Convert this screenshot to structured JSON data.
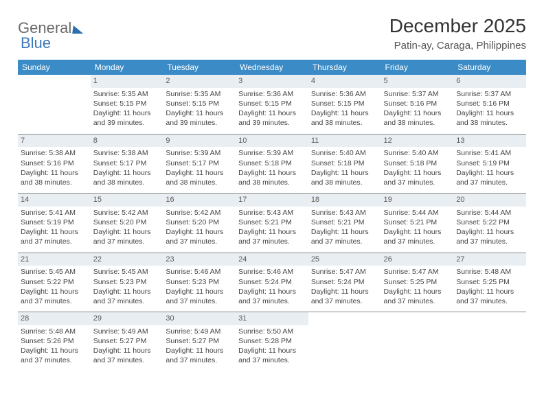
{
  "logo": {
    "part1": "General",
    "part2": "Blue"
  },
  "title": "December 2025",
  "subtitle": "Patin-ay, Caraga, Philippines",
  "colors": {
    "header_bg": "#3b8bc6",
    "header_text": "#ffffff",
    "daynum_bg": "#e9eef2",
    "rule": "#888888"
  },
  "daynames": [
    "Sunday",
    "Monday",
    "Tuesday",
    "Wednesday",
    "Thursday",
    "Friday",
    "Saturday"
  ],
  "weeks": [
    [
      {
        "n": "",
        "rise": "",
        "set": "",
        "d1": "",
        "d2": ""
      },
      {
        "n": "1",
        "rise": "Sunrise: 5:35 AM",
        "set": "Sunset: 5:15 PM",
        "d1": "Daylight: 11 hours",
        "d2": "and 39 minutes."
      },
      {
        "n": "2",
        "rise": "Sunrise: 5:35 AM",
        "set": "Sunset: 5:15 PM",
        "d1": "Daylight: 11 hours",
        "d2": "and 39 minutes."
      },
      {
        "n": "3",
        "rise": "Sunrise: 5:36 AM",
        "set": "Sunset: 5:15 PM",
        "d1": "Daylight: 11 hours",
        "d2": "and 39 minutes."
      },
      {
        "n": "4",
        "rise": "Sunrise: 5:36 AM",
        "set": "Sunset: 5:15 PM",
        "d1": "Daylight: 11 hours",
        "d2": "and 38 minutes."
      },
      {
        "n": "5",
        "rise": "Sunrise: 5:37 AM",
        "set": "Sunset: 5:16 PM",
        "d1": "Daylight: 11 hours",
        "d2": "and 38 minutes."
      },
      {
        "n": "6",
        "rise": "Sunrise: 5:37 AM",
        "set": "Sunset: 5:16 PM",
        "d1": "Daylight: 11 hours",
        "d2": "and 38 minutes."
      }
    ],
    [
      {
        "n": "7",
        "rise": "Sunrise: 5:38 AM",
        "set": "Sunset: 5:16 PM",
        "d1": "Daylight: 11 hours",
        "d2": "and 38 minutes."
      },
      {
        "n": "8",
        "rise": "Sunrise: 5:38 AM",
        "set": "Sunset: 5:17 PM",
        "d1": "Daylight: 11 hours",
        "d2": "and 38 minutes."
      },
      {
        "n": "9",
        "rise": "Sunrise: 5:39 AM",
        "set": "Sunset: 5:17 PM",
        "d1": "Daylight: 11 hours",
        "d2": "and 38 minutes."
      },
      {
        "n": "10",
        "rise": "Sunrise: 5:39 AM",
        "set": "Sunset: 5:18 PM",
        "d1": "Daylight: 11 hours",
        "d2": "and 38 minutes."
      },
      {
        "n": "11",
        "rise": "Sunrise: 5:40 AM",
        "set": "Sunset: 5:18 PM",
        "d1": "Daylight: 11 hours",
        "d2": "and 38 minutes."
      },
      {
        "n": "12",
        "rise": "Sunrise: 5:40 AM",
        "set": "Sunset: 5:18 PM",
        "d1": "Daylight: 11 hours",
        "d2": "and 37 minutes."
      },
      {
        "n": "13",
        "rise": "Sunrise: 5:41 AM",
        "set": "Sunset: 5:19 PM",
        "d1": "Daylight: 11 hours",
        "d2": "and 37 minutes."
      }
    ],
    [
      {
        "n": "14",
        "rise": "Sunrise: 5:41 AM",
        "set": "Sunset: 5:19 PM",
        "d1": "Daylight: 11 hours",
        "d2": "and 37 minutes."
      },
      {
        "n": "15",
        "rise": "Sunrise: 5:42 AM",
        "set": "Sunset: 5:20 PM",
        "d1": "Daylight: 11 hours",
        "d2": "and 37 minutes."
      },
      {
        "n": "16",
        "rise": "Sunrise: 5:42 AM",
        "set": "Sunset: 5:20 PM",
        "d1": "Daylight: 11 hours",
        "d2": "and 37 minutes."
      },
      {
        "n": "17",
        "rise": "Sunrise: 5:43 AM",
        "set": "Sunset: 5:21 PM",
        "d1": "Daylight: 11 hours",
        "d2": "and 37 minutes."
      },
      {
        "n": "18",
        "rise": "Sunrise: 5:43 AM",
        "set": "Sunset: 5:21 PM",
        "d1": "Daylight: 11 hours",
        "d2": "and 37 minutes."
      },
      {
        "n": "19",
        "rise": "Sunrise: 5:44 AM",
        "set": "Sunset: 5:21 PM",
        "d1": "Daylight: 11 hours",
        "d2": "and 37 minutes."
      },
      {
        "n": "20",
        "rise": "Sunrise: 5:44 AM",
        "set": "Sunset: 5:22 PM",
        "d1": "Daylight: 11 hours",
        "d2": "and 37 minutes."
      }
    ],
    [
      {
        "n": "21",
        "rise": "Sunrise: 5:45 AM",
        "set": "Sunset: 5:22 PM",
        "d1": "Daylight: 11 hours",
        "d2": "and 37 minutes."
      },
      {
        "n": "22",
        "rise": "Sunrise: 5:45 AM",
        "set": "Sunset: 5:23 PM",
        "d1": "Daylight: 11 hours",
        "d2": "and 37 minutes."
      },
      {
        "n": "23",
        "rise": "Sunrise: 5:46 AM",
        "set": "Sunset: 5:23 PM",
        "d1": "Daylight: 11 hours",
        "d2": "and 37 minutes."
      },
      {
        "n": "24",
        "rise": "Sunrise: 5:46 AM",
        "set": "Sunset: 5:24 PM",
        "d1": "Daylight: 11 hours",
        "d2": "and 37 minutes."
      },
      {
        "n": "25",
        "rise": "Sunrise: 5:47 AM",
        "set": "Sunset: 5:24 PM",
        "d1": "Daylight: 11 hours",
        "d2": "and 37 minutes."
      },
      {
        "n": "26",
        "rise": "Sunrise: 5:47 AM",
        "set": "Sunset: 5:25 PM",
        "d1": "Daylight: 11 hours",
        "d2": "and 37 minutes."
      },
      {
        "n": "27",
        "rise": "Sunrise: 5:48 AM",
        "set": "Sunset: 5:25 PM",
        "d1": "Daylight: 11 hours",
        "d2": "and 37 minutes."
      }
    ],
    [
      {
        "n": "28",
        "rise": "Sunrise: 5:48 AM",
        "set": "Sunset: 5:26 PM",
        "d1": "Daylight: 11 hours",
        "d2": "and 37 minutes."
      },
      {
        "n": "29",
        "rise": "Sunrise: 5:49 AM",
        "set": "Sunset: 5:27 PM",
        "d1": "Daylight: 11 hours",
        "d2": "and 37 minutes."
      },
      {
        "n": "30",
        "rise": "Sunrise: 5:49 AM",
        "set": "Sunset: 5:27 PM",
        "d1": "Daylight: 11 hours",
        "d2": "and 37 minutes."
      },
      {
        "n": "31",
        "rise": "Sunrise: 5:50 AM",
        "set": "Sunset: 5:28 PM",
        "d1": "Daylight: 11 hours",
        "d2": "and 37 minutes."
      },
      {
        "n": "",
        "rise": "",
        "set": "",
        "d1": "",
        "d2": ""
      },
      {
        "n": "",
        "rise": "",
        "set": "",
        "d1": "",
        "d2": ""
      },
      {
        "n": "",
        "rise": "",
        "set": "",
        "d1": "",
        "d2": ""
      }
    ]
  ]
}
